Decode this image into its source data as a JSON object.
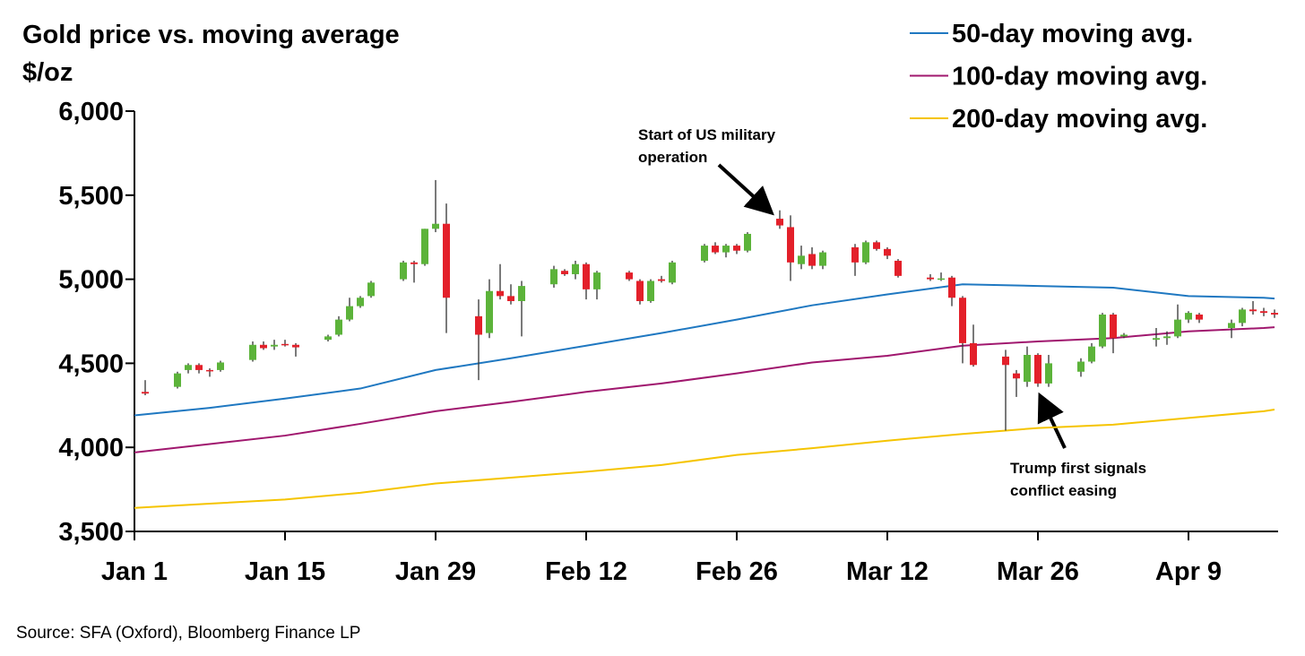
{
  "chart_data": {
    "type": "candlestick",
    "title": "Gold price vs. moving average",
    "ylabel": "$/oz",
    "source": "Source: SFA (Oxford), Bloomberg Finance LP",
    "up_color": "#5cb33a",
    "down_color": "#e3202a",
    "legend": "top-right",
    "xlim": [
      "Jan 1",
      "Apr 17"
    ],
    "xticks": [
      "Jan 1",
      "Jan 15",
      "Jan 29",
      "Feb 12",
      "Feb 26",
      "Mar 12",
      "Mar 26",
      "Apr 9"
    ],
    "ylim": [
      3500,
      6000
    ],
    "yticks": [
      {
        "value": 3500,
        "label": "3,500"
      },
      {
        "value": 4000,
        "label": "4,000"
      },
      {
        "value": 4500,
        "label": "4,500"
      },
      {
        "value": 5000,
        "label": "5,000"
      },
      {
        "value": 5500,
        "label": "5,500"
      },
      {
        "value": 6000,
        "label": "6,000"
      }
    ],
    "x": [
      "Jan 2",
      "Jan 5",
      "Jan 6",
      "Jan 7",
      "Jan 8",
      "Jan 9",
      "Jan 12",
      "Jan 13",
      "Jan 14",
      "Jan 15",
      "Jan 16",
      "Jan 19",
      "Jan 20",
      "Jan 21",
      "Jan 22",
      "Jan 23",
      "Jan 26",
      "Jan 27",
      "Jan 28",
      "Jan 29",
      "Jan 30",
      "Feb 2",
      "Feb 3",
      "Feb 4",
      "Feb 5",
      "Feb 6",
      "Feb 9",
      "Feb 10",
      "Feb 11",
      "Feb 12",
      "Feb 13",
      "Feb 16",
      "Feb 17",
      "Feb 18",
      "Feb 19",
      "Feb 20",
      "Feb 23",
      "Feb 24",
      "Feb 25",
      "Feb 26",
      "Feb 27",
      "Mar 2",
      "Mar 3",
      "Mar 4",
      "Mar 5",
      "Mar 6",
      "Mar 9",
      "Mar 10",
      "Mar 11",
      "Mar 12",
      "Mar 13",
      "Mar 16",
      "Mar 17",
      "Mar 18",
      "Mar 19",
      "Mar 20",
      "Mar 23",
      "Mar 24",
      "Mar 25",
      "Mar 26",
      "Mar 27",
      "Mar 30",
      "Mar 31",
      "Apr 1",
      "Apr 2",
      "Apr 3",
      "Apr 6",
      "Apr 7",
      "Apr 8",
      "Apr 9",
      "Apr 10",
      "Apr 13",
      "Apr 14",
      "Apr 15",
      "Apr 16",
      "Apr 17"
    ],
    "open": [
      4330,
      4360,
      4460,
      4490,
      4460,
      4460,
      4520,
      4610,
      4600,
      4615,
      4610,
      4640,
      4670,
      4760,
      4840,
      4900,
      5000,
      5100,
      5090,
      5300,
      5330,
      4780,
      4680,
      4930,
      4900,
      4870,
      4970,
      5050,
      5030,
      5090,
      4940,
      5040,
      4990,
      4870,
      5000,
      4980,
      5110,
      5200,
      5160,
      5200,
      5170,
      5360,
      5310,
      5090,
      5150,
      5080,
      5190,
      5100,
      5220,
      5180,
      5110,
      5010,
      5000,
      5010,
      4890,
      4620,
      4540,
      4440,
      4390,
      4550,
      4380,
      4450,
      4510,
      4600,
      4790,
      4660,
      4640,
      4650,
      4660,
      4760,
      4790,
      4710,
      4740,
      4820,
      4810,
      4800
    ],
    "high": [
      4400,
      4450,
      4500,
      4500,
      4470,
      4515,
      4630,
      4630,
      4640,
      4640,
      4620,
      4670,
      4780,
      4890,
      4900,
      4990,
      5110,
      5110,
      5300,
      5590,
      5450,
      4880,
      5000,
      5090,
      4970,
      4990,
      5080,
      5060,
      5110,
      5100,
      5050,
      5050,
      5000,
      5000,
      5020,
      5110,
      5210,
      5220,
      5210,
      5210,
      5280,
      5410,
      5380,
      5200,
      5190,
      5170,
      5210,
      5230,
      5230,
      5190,
      5120,
      5030,
      5040,
      5020,
      4900,
      4730,
      4580,
      4460,
      4600,
      4560,
      4550,
      4530,
      4620,
      4800,
      4800,
      4680,
      4710,
      4690,
      4850,
      4810,
      4800,
      4760,
      4830,
      4870,
      4830,
      4820
    ],
    "low": [
      4310,
      4350,
      4440,
      4440,
      4420,
      4450,
      4510,
      4580,
      4580,
      4600,
      4540,
      4630,
      4660,
      4750,
      4830,
      4890,
      4990,
      4980,
      5080,
      5280,
      4680,
      4400,
      4650,
      4880,
      4850,
      4660,
      4950,
      5020,
      5000,
      4880,
      4880,
      4990,
      4850,
      4860,
      4980,
      4970,
      5100,
      5150,
      5130,
      5150,
      5160,
      5300,
      4990,
      5060,
      5060,
      5060,
      5020,
      5090,
      5170,
      5120,
      5010,
      4990,
      4990,
      4840,
      4500,
      4480,
      4100,
      4300,
      4360,
      4360,
      4360,
      4420,
      4500,
      4590,
      4560,
      4650,
      4600,
      4610,
      4650,
      4740,
      4740,
      4650,
      4720,
      4790,
      4780,
      4770
    ],
    "close": [
      4320,
      4440,
      4490,
      4460,
      4455,
      4505,
      4610,
      4590,
      4610,
      4610,
      4595,
      4660,
      4760,
      4840,
      4890,
      4980,
      5100,
      5090,
      5300,
      5330,
      4890,
      4670,
      4930,
      4900,
      4870,
      4960,
      5060,
      5030,
      5090,
      4940,
      5040,
      5000,
      4870,
      4990,
      4990,
      5100,
      5200,
      5160,
      5200,
      5170,
      5270,
      5320,
      5100,
      5140,
      5080,
      5160,
      5100,
      5220,
      5180,
      5140,
      5020,
      5000,
      5005,
      4890,
      4620,
      4490,
      4490,
      4410,
      4550,
      4380,
      4500,
      4510,
      4600,
      4790,
      4650,
      4670,
      4650,
      4660,
      4760,
      4800,
      4760,
      4740,
      4820,
      4810,
      4800,
      4790
    ],
    "series": [
      {
        "name": "50-day moving avg.",
        "color": "#1f78c1",
        "x": [
          "Jan 1",
          "Jan 8",
          "Jan 15",
          "Jan 22",
          "Jan 29",
          "Feb 5",
          "Feb 12",
          "Feb 19",
          "Feb 26",
          "Mar 5",
          "Mar 12",
          "Mar 19",
          "Mar 26",
          "Apr 2",
          "Apr 9",
          "Apr 16",
          "Apr 17"
        ],
        "values": [
          4190,
          4235,
          4290,
          4350,
          4460,
          4530,
          4605,
          4680,
          4760,
          4845,
          4910,
          4970,
          4960,
          4950,
          4900,
          4890,
          4885
        ]
      },
      {
        "name": "100-day moving avg.",
        "color": "#a0176e",
        "x": [
          "Jan 1",
          "Jan 8",
          "Jan 15",
          "Jan 22",
          "Jan 29",
          "Feb 5",
          "Feb 12",
          "Feb 19",
          "Feb 26",
          "Mar 5",
          "Mar 12",
          "Mar 19",
          "Mar 26",
          "Apr 2",
          "Apr 9",
          "Apr 16",
          "Apr 17"
        ],
        "values": [
          3970,
          4020,
          4070,
          4140,
          4215,
          4270,
          4330,
          4380,
          4440,
          4505,
          4545,
          4605,
          4630,
          4650,
          4690,
          4710,
          4715
        ]
      },
      {
        "name": "200-day moving avg.",
        "color": "#f5c400",
        "x": [
          "Jan 1",
          "Jan 8",
          "Jan 15",
          "Jan 22",
          "Jan 29",
          "Feb 5",
          "Feb 12",
          "Feb 19",
          "Feb 26",
          "Mar 5",
          "Mar 12",
          "Mar 19",
          "Mar 26",
          "Apr 2",
          "Apr 9",
          "Apr 16",
          "Apr 17"
        ],
        "values": [
          3640,
          3665,
          3690,
          3730,
          3785,
          3820,
          3855,
          3895,
          3955,
          3995,
          4040,
          4080,
          4115,
          4135,
          4175,
          4215,
          4225
        ]
      }
    ],
    "annotations": [
      {
        "lines": [
          "Start of US military",
          "operation"
        ]
      },
      {
        "lines": [
          "Trump first signals",
          "conflict easing"
        ]
      }
    ]
  }
}
